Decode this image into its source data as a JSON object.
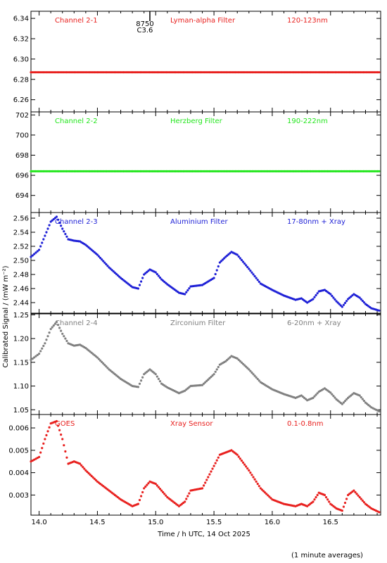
{
  "figure": {
    "ylabel": "Calibrated Signal / (mW m⁻²)",
    "xlabel": "Time / h UTC, 14 Oct 2025",
    "footnote": "(1 minute averages)",
    "annotation_top": "8750",
    "annotation_bottom": "C3.6",
    "annotation_x": 14.95
  },
  "chart_data": [
    {
      "type": "scatter",
      "panel": "Channel 2-1",
      "labels": [
        "Channel 2-1",
        "Lyman-alpha Filter",
        "120-123nm"
      ],
      "color": "#e8201e",
      "xlim": [
        13.93,
        16.93
      ],
      "ylim": [
        6.248,
        6.347
      ],
      "yticks": [
        "6.26",
        "6.28",
        "6.30",
        "6.32",
        "6.34"
      ],
      "x": [
        13.93,
        14.5,
        15.0,
        15.5,
        16.0,
        16.5,
        16.93
      ],
      "y": [
        6.287,
        6.287,
        6.287,
        6.287,
        6.287,
        6.287,
        6.287
      ]
    },
    {
      "type": "scatter",
      "panel": "Channel 2-2",
      "labels": [
        "Channel 2-2",
        "Herzberg Filter",
        "190-222nm"
      ],
      "color": "#22e61c",
      "xlim": [
        13.93,
        16.93
      ],
      "ylim": [
        692.3,
        702.3
      ],
      "yticks": [
        "694",
        "696",
        "698",
        "700",
        "702"
      ],
      "x": [
        13.93,
        14.5,
        15.0,
        15.5,
        16.0,
        16.5,
        16.93
      ],
      "y": [
        696.4,
        696.4,
        696.4,
        696.4,
        696.4,
        696.4,
        696.4
      ]
    },
    {
      "type": "scatter",
      "panel": "Channel 2-3",
      "labels": [
        "Channel 2-3",
        "Aluminium Filter",
        "17-80nm + Xray"
      ],
      "color": "#1d1fd6",
      "xlim": [
        13.93,
        16.93
      ],
      "ylim": [
        2.425,
        2.568
      ],
      "yticks": [
        "2.44",
        "2.46",
        "2.48",
        "2.50",
        "2.52",
        "2.54",
        "2.56"
      ],
      "x": [
        13.93,
        14.0,
        14.05,
        14.1,
        14.15,
        14.2,
        14.25,
        14.3,
        14.35,
        14.4,
        14.5,
        14.6,
        14.7,
        14.8,
        14.85,
        14.9,
        14.95,
        15.0,
        15.05,
        15.1,
        15.2,
        15.25,
        15.3,
        15.4,
        15.5,
        15.55,
        15.6,
        15.65,
        15.7,
        15.8,
        15.9,
        16.0,
        16.1,
        16.2,
        16.25,
        16.3,
        16.35,
        16.4,
        16.45,
        16.5,
        16.55,
        16.6,
        16.65,
        16.7,
        16.75,
        16.8,
        16.85,
        16.93
      ],
      "y": [
        2.505,
        2.515,
        2.535,
        2.555,
        2.562,
        2.545,
        2.53,
        2.528,
        2.527,
        2.522,
        2.508,
        2.49,
        2.475,
        2.462,
        2.46,
        2.48,
        2.487,
        2.483,
        2.473,
        2.466,
        2.454,
        2.452,
        2.463,
        2.465,
        2.475,
        2.497,
        2.505,
        2.512,
        2.508,
        2.488,
        2.467,
        2.458,
        2.45,
        2.444,
        2.446,
        2.44,
        2.445,
        2.456,
        2.458,
        2.452,
        2.442,
        2.434,
        2.445,
        2.452,
        2.447,
        2.438,
        2.432,
        2.428
      ]
    },
    {
      "type": "scatter",
      "panel": "Channel 2-4",
      "labels": [
        "Channel 2-4",
        "Zirconium Filter",
        "6-20nm + Xray"
      ],
      "color": "#808080",
      "xlim": [
        13.93,
        16.93
      ],
      "ylim": [
        1.04,
        1.252
      ],
      "yticks": [
        "1.05",
        "1.10",
        "1.15",
        "1.20",
        "1.25"
      ],
      "x": [
        13.93,
        14.0,
        14.05,
        14.1,
        14.15,
        14.2,
        14.25,
        14.3,
        14.35,
        14.4,
        14.5,
        14.6,
        14.7,
        14.8,
        14.85,
        14.9,
        14.95,
        15.0,
        15.05,
        15.1,
        15.2,
        15.25,
        15.3,
        15.4,
        15.5,
        15.55,
        15.6,
        15.65,
        15.7,
        15.8,
        15.9,
        16.0,
        16.1,
        16.2,
        16.25,
        16.3,
        16.35,
        16.4,
        16.45,
        16.5,
        16.55,
        16.6,
        16.65,
        16.7,
        16.75,
        16.8,
        16.85,
        16.93
      ],
      "y": [
        1.155,
        1.168,
        1.19,
        1.22,
        1.235,
        1.21,
        1.19,
        1.185,
        1.187,
        1.18,
        1.16,
        1.135,
        1.115,
        1.1,
        1.098,
        1.125,
        1.135,
        1.125,
        1.105,
        1.097,
        1.085,
        1.09,
        1.1,
        1.102,
        1.125,
        1.145,
        1.152,
        1.163,
        1.158,
        1.135,
        1.108,
        1.093,
        1.083,
        1.075,
        1.08,
        1.07,
        1.075,
        1.088,
        1.095,
        1.086,
        1.072,
        1.062,
        1.075,
        1.085,
        1.08,
        1.065,
        1.055,
        1.045
      ]
    },
    {
      "type": "scatter",
      "panel": "GOES",
      "labels": [
        "GOES",
        "Xray Sensor",
        "0.1-0.8nm"
      ],
      "color": "#e8201e",
      "xlim": [
        13.93,
        16.93
      ],
      "ylim": [
        0.0021,
        0.0066
      ],
      "yticks": [
        "0.003",
        "0.004",
        "0.005",
        "0.006"
      ],
      "x": [
        13.93,
        14.0,
        14.05,
        14.1,
        14.15,
        14.2,
        14.25,
        14.3,
        14.35,
        14.4,
        14.5,
        14.6,
        14.7,
        14.8,
        14.85,
        14.9,
        14.95,
        15.0,
        15.1,
        15.2,
        15.25,
        15.3,
        15.4,
        15.5,
        15.55,
        15.6,
        15.65,
        15.7,
        15.8,
        15.9,
        16.0,
        16.1,
        16.2,
        16.25,
        16.3,
        16.35,
        16.4,
        16.45,
        16.5,
        16.55,
        16.6,
        16.65,
        16.7,
        16.75,
        16.8,
        16.85,
        16.93
      ],
      "y": [
        0.0045,
        0.0047,
        0.0055,
        0.0062,
        0.0063,
        0.0055,
        0.0044,
        0.0045,
        0.0044,
        0.0041,
        0.0036,
        0.0032,
        0.0028,
        0.0025,
        0.0026,
        0.0033,
        0.0036,
        0.0035,
        0.0029,
        0.0025,
        0.0027,
        0.0032,
        0.0033,
        0.0043,
        0.0048,
        0.0049,
        0.005,
        0.0048,
        0.0041,
        0.0033,
        0.0028,
        0.0026,
        0.0025,
        0.0026,
        0.0025,
        0.0027,
        0.0031,
        0.003,
        0.0026,
        0.0024,
        0.0023,
        0.003,
        0.0032,
        0.0029,
        0.0026,
        0.0024,
        0.0022
      ]
    }
  ],
  "xaxis": {
    "ticks": [
      14.0,
      14.5,
      15.0,
      15.5,
      16.0,
      16.5
    ],
    "tick_labels": [
      "14.0",
      "14.5",
      "15.0",
      "15.5",
      "16.0",
      "16.5"
    ]
  }
}
